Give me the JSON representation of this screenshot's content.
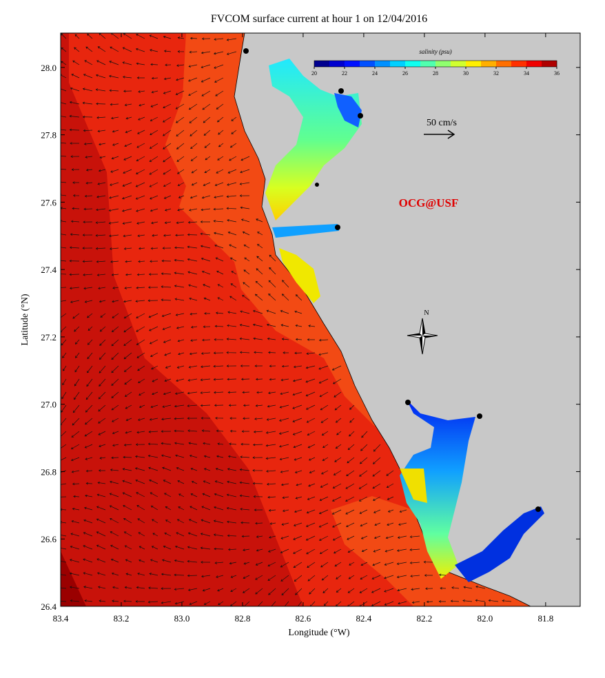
{
  "title": "FVCOM surface current at hour 1 on 12/04/2016",
  "x_axis": {
    "label": "Longitude (°W)",
    "lim": [
      83.4,
      81.686
    ],
    "ticks": [
      83.4,
      83.2,
      {
        "value": 83,
        "label": "83.0"
      },
      82.8,
      82.6,
      82.4,
      82.2,
      {
        "value": 82,
        "label": "82.0"
      },
      81.8
    ]
  },
  "y_axis": {
    "label": "Latitude (°N)",
    "lim": [
      26.4,
      28.102
    ],
    "ticks": [
      26.4,
      26.6,
      26.8,
      {
        "value": 27,
        "label": "27.0"
      },
      27.2,
      27.4,
      27.6,
      27.8,
      {
        "value": 28,
        "label": "28.0"
      }
    ]
  },
  "colorbar": {
    "label": "salinity (psu)",
    "lim": [
      20,
      36
    ],
    "ticks": [
      20,
      22,
      24,
      26,
      28,
      30,
      32,
      34,
      36
    ],
    "colors": [
      "#00008f",
      "#0000cf",
      "#0010ff",
      "#0050ff",
      "#0090ff",
      "#00d0ff",
      "#10ffef",
      "#50ffaf",
      "#90ff6f",
      "#d0ff2f",
      "#ffef00",
      "#ffaf00",
      "#ff6f00",
      "#ff3000",
      "#ef0000",
      "#af0000"
    ]
  },
  "annotations": {
    "scale_label": "50 cm/s",
    "credit": "OCG@USF",
    "north": "N"
  }
}
